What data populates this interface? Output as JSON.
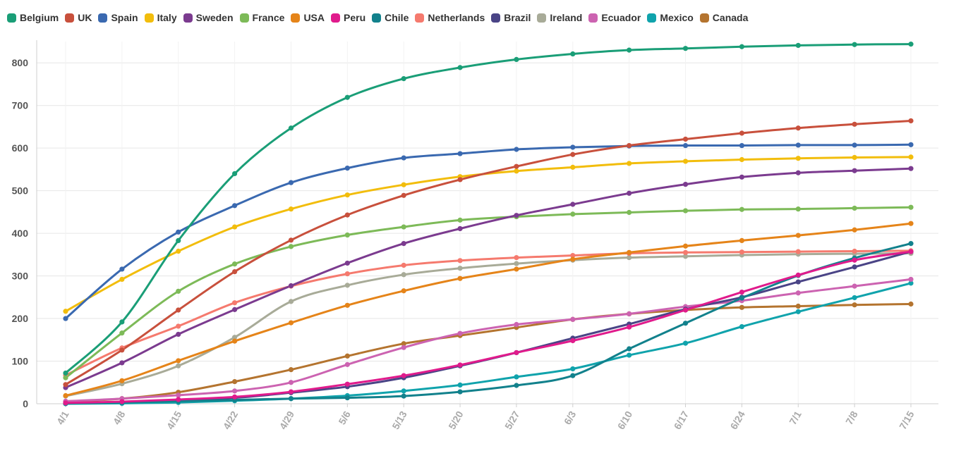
{
  "chart_data": {
    "type": "line",
    "title": "",
    "xlabel": "",
    "ylabel": "",
    "x": [
      "4/1",
      "4/8",
      "4/15",
      "4/22",
      "4/29",
      "5/6",
      "5/13",
      "5/20",
      "5/27",
      "6/3",
      "6/10",
      "6/17",
      "6/24",
      "7/1",
      "7/8",
      "7/15"
    ],
    "ylim": [
      0,
      850
    ],
    "yticks": [
      0,
      100,
      200,
      300,
      400,
      500,
      600,
      700,
      800
    ],
    "grid": true,
    "legend_position": "top-left",
    "series": [
      {
        "name": "Belgium",
        "color": "#1a9e77",
        "values": [
          72,
          192,
          383,
          540,
          647,
          719,
          763,
          789,
          808,
          821,
          830,
          834,
          838,
          841,
          843,
          844
        ]
      },
      {
        "name": "UK",
        "color": "#c8503c",
        "values": [
          45,
          126,
          220,
          310,
          384,
          443,
          489,
          526,
          557,
          585,
          606,
          621,
          635,
          647,
          656,
          664
        ]
      },
      {
        "name": "Spain",
        "color": "#3a69b0",
        "values": [
          200,
          316,
          403,
          465,
          519,
          553,
          577,
          587,
          597,
          602,
          605,
          606,
          606,
          607,
          607,
          608
        ]
      },
      {
        "name": "Italy",
        "color": "#f2bd0c",
        "values": [
          217,
          292,
          358,
          415,
          457,
          490,
          514,
          533,
          546,
          555,
          564,
          569,
          573,
          576,
          578,
          579
        ]
      },
      {
        "name": "Sweden",
        "color": "#7b3b8f",
        "values": [
          38,
          96,
          163,
          221,
          277,
          330,
          376,
          411,
          442,
          468,
          494,
          515,
          532,
          542,
          547,
          552
        ]
      },
      {
        "name": "France",
        "color": "#7dba58",
        "values": [
          61,
          166,
          264,
          328,
          369,
          396,
          415,
          431,
          439,
          445,
          449,
          453,
          456,
          457,
          459,
          461
        ]
      },
      {
        "name": "USA",
        "color": "#e58419",
        "values": [
          19,
          54,
          101,
          147,
          190,
          231,
          265,
          294,
          316,
          339,
          355,
          370,
          383,
          395,
          408,
          423
        ]
      },
      {
        "name": "Peru",
        "color": "#e01b8c",
        "values": [
          2,
          5,
          10,
          16,
          28,
          46,
          66,
          91,
          120,
          148,
          180,
          220,
          262,
          302,
          337,
          357
        ]
      },
      {
        "name": "Chile",
        "color": "#12818c",
        "values": [
          1,
          3,
          6,
          9,
          12,
          14,
          18,
          28,
          43,
          66,
          129,
          189,
          248,
          301,
          342,
          376
        ]
      },
      {
        "name": "Netherlands",
        "color": "#f57a6e",
        "values": [
          67,
          131,
          182,
          237,
          276,
          305,
          325,
          336,
          343,
          348,
          353,
          355,
          356,
          357,
          358,
          359
        ]
      },
      {
        "name": "Brazil",
        "color": "#4a4486",
        "values": [
          1,
          4,
          9,
          14,
          26,
          40,
          61,
          89,
          120,
          154,
          187,
          222,
          250,
          286,
          321,
          357
        ]
      },
      {
        "name": "Ireland",
        "color": "#a8ab98",
        "values": [
          18,
          47,
          89,
          156,
          240,
          278,
          303,
          318,
          329,
          337,
          343,
          346,
          349,
          351,
          352,
          353
        ]
      },
      {
        "name": "Ecuador",
        "color": "#cc63b1",
        "values": [
          6,
          12,
          20,
          30,
          50,
          92,
          132,
          165,
          186,
          198,
          211,
          228,
          242,
          260,
          276,
          292
        ]
      },
      {
        "name": "Mexico",
        "color": "#10a3ac",
        "values": [
          0,
          1,
          3,
          7,
          12,
          19,
          30,
          44,
          63,
          82,
          114,
          142,
          181,
          216,
          249,
          283
        ]
      },
      {
        "name": "Canada",
        "color": "#b4742f",
        "values": [
          5,
          12,
          27,
          52,
          80,
          112,
          141,
          160,
          179,
          198,
          211,
          220,
          226,
          229,
          232,
          234
        ]
      }
    ]
  }
}
